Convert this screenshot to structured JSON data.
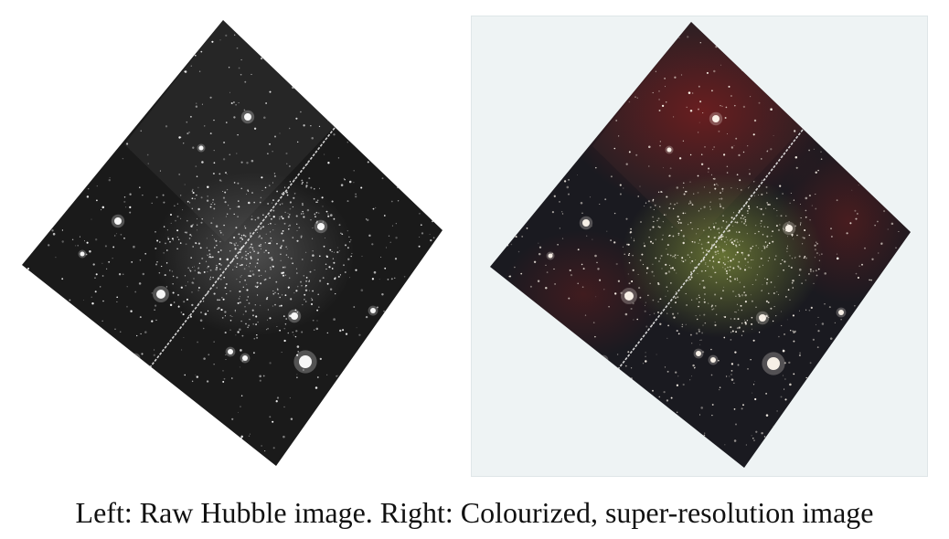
{
  "caption": "Left: Raw Hubble image. Right: Colourized, super-resolution image",
  "images": [
    {
      "id": "raw",
      "kind": "grayscale",
      "palette": {
        "field": "#1a1a1a",
        "field_light": "#2c2c2c",
        "cluster_glow": "#5a5a5a",
        "star": "#ffffff",
        "seam": "#e6e6e6"
      }
    },
    {
      "id": "colourized",
      "kind": "colour",
      "palette": {
        "field": "#1a1a20",
        "field_light": "#2a2226",
        "red_nebula": "#7a1e1e",
        "green_glow": "#7f8f3a",
        "star": "#fff8ee",
        "seam": "#e8e8e8",
        "background": "#eef3f4"
      }
    }
  ]
}
